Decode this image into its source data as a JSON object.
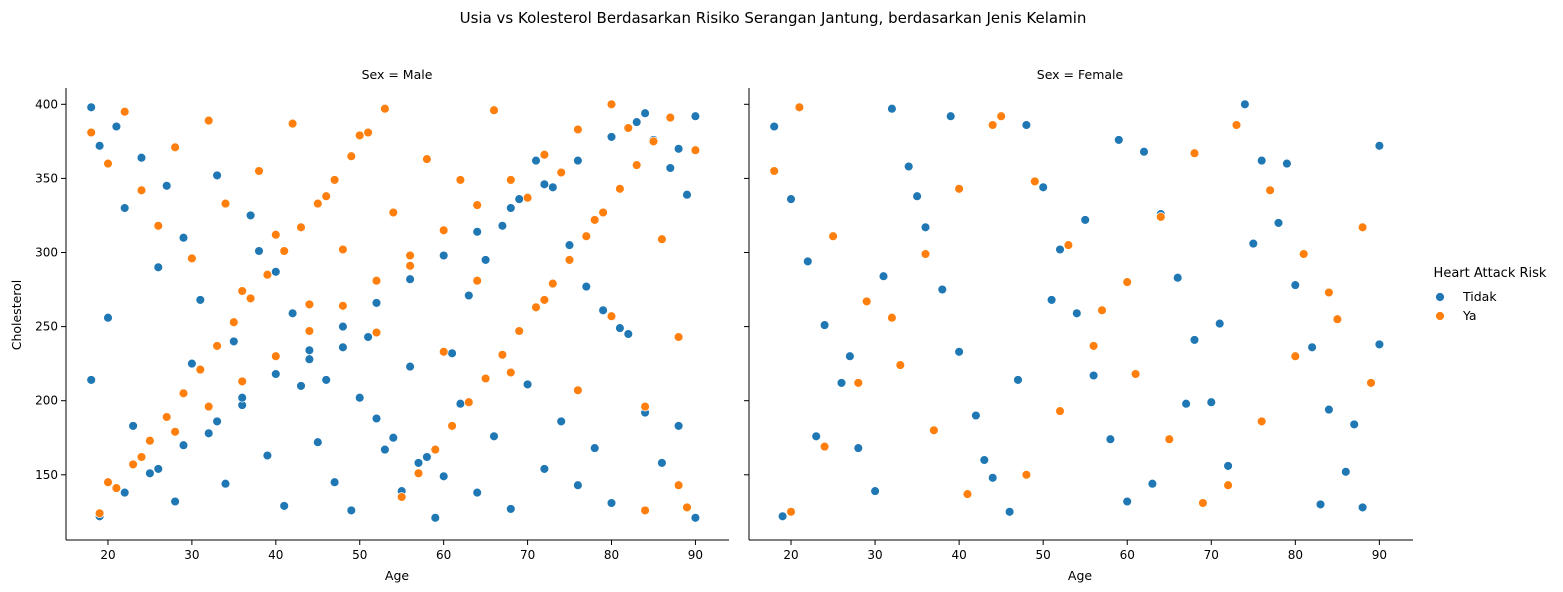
{
  "chart_data": {
    "type": "scatter",
    "title": "Usia vs Kolesterol Berdasarkan Risiko Serangan Jantung, berdasarkan Jenis Kelamin",
    "xlabel": "Age",
    "ylabel": "Cholesterol",
    "xlim": [
      15,
      94
    ],
    "ylim": [
      106,
      411
    ],
    "xticks": [
      20,
      30,
      40,
      50,
      60,
      70,
      80,
      90
    ],
    "yticks": [
      150,
      200,
      250,
      300,
      350,
      400
    ],
    "grid": false,
    "legend": {
      "title": "Heart Attack Risk",
      "placement": "right",
      "entries": [
        {
          "label": "Tidak",
          "color": "#1f77b4"
        },
        {
          "label": "Ya",
          "color": "#ff7f0e"
        }
      ]
    },
    "panels": [
      {
        "title": "Sex = Male",
        "series": [
          {
            "name": "Tidak",
            "color": "#1f77b4",
            "x": [
              18,
              19,
              21,
              22,
              24,
              26,
              27,
              29,
              31,
              33,
              35,
              37,
              38,
              40,
              42,
              44,
              46,
              48,
              50,
              52,
              54,
              56,
              58,
              60,
              62,
              64,
              66,
              68,
              70,
              72,
              74,
              76,
              78,
              80,
              82,
              84,
              86,
              88,
              90,
              18,
              20,
              23,
              25,
              28,
              30,
              32,
              34,
              36,
              39,
              41,
              43,
              45,
              47,
              49,
              51,
              53,
              55,
              57,
              59,
              61,
              63,
              65,
              67,
              69,
              71,
              73,
              75,
              77,
              79,
              81,
              83,
              85,
              87,
              89,
              19,
              22,
              26,
              29,
              33,
              36,
              40,
              44,
              48,
              52,
              56,
              60,
              64,
              68,
              72,
              76,
              80,
              84,
              88,
              90
            ],
            "y": [
              398,
              372,
              385,
              330,
              364,
              290,
              345,
              310,
              268,
              352,
              240,
              325,
              301,
              287,
              259,
              228,
              214,
              236,
              202,
              188,
              175,
              223,
              162,
              149,
              198,
              138,
              176,
              127,
              211,
              154,
              186,
              143,
              168,
              131,
              245,
              192,
              158,
              183,
              121,
              214,
              256,
              183,
              151,
              132,
              225,
              178,
              144,
              197,
              163,
              129,
              210,
              172,
              145,
              126,
              243,
              167,
              139,
              158,
              121,
              232,
              271,
              295,
              318,
              336,
              362,
              344,
              305,
              277,
              261,
              249,
              388,
              376,
              357,
              339,
              122,
              138,
              154,
              170,
              186,
              202,
              218,
              234,
              250,
              266,
              282,
              298,
              314,
              330,
              346,
              362,
              378,
              394,
              370,
              392
            ]
          },
          {
            "name": "Ya",
            "color": "#ff7f0e",
            "x": [
              18,
              20,
              22,
              24,
              26,
              28,
              30,
              32,
              34,
              36,
              38,
              40,
              42,
              44,
              46,
              48,
              50,
              52,
              54,
              56,
              58,
              60,
              62,
              64,
              66,
              68,
              70,
              72,
              74,
              76,
              78,
              80,
              82,
              84,
              86,
              88,
              90,
              19,
              21,
              23,
              25,
              27,
              29,
              31,
              33,
              35,
              37,
              39,
              41,
              43,
              45,
              47,
              49,
              51,
              53,
              55,
              57,
              59,
              61,
              63,
              65,
              67,
              69,
              71,
              73,
              75,
              77,
              79,
              81,
              83,
              85,
              87,
              89,
              20,
              24,
              28,
              32,
              36,
              40,
              44,
              48,
              52,
              56,
              60,
              64,
              68,
              72,
              76,
              80,
              84,
              88
            ],
            "y": [
              381,
              360,
              395,
              342,
              318,
              371,
              296,
              389,
              333,
              274,
              355,
              312,
              387,
              265,
              338,
              302,
              379,
              246,
              327,
              291,
              363,
              233,
              349,
              281,
              396,
              219,
              337,
              268,
              354,
              207,
              322,
              257,
              384,
              196,
              309,
              243,
              369,
              124,
              141,
              157,
              173,
              189,
              205,
              221,
              237,
              253,
              269,
              285,
              301,
              317,
              333,
              349,
              365,
              381,
              397,
              135,
              151,
              167,
              183,
              199,
              215,
              231,
              247,
              263,
              279,
              295,
              311,
              327,
              343,
              359,
              375,
              391,
              128,
              145,
              162,
              179,
              196,
              213,
              230,
              247,
              264,
              281,
              298,
              315,
              332,
              349,
              366,
              383,
              400,
              126,
              143
            ]
          }
        ]
      },
      {
        "title": "Sex = Female",
        "series": [
          {
            "name": "Tidak",
            "color": "#1f77b4",
            "x": [
              18,
              20,
              22,
              24,
              26,
              28,
              30,
              32,
              34,
              36,
              38,
              40,
              42,
              44,
              46,
              48,
              50,
              52,
              54,
              56,
              58,
              60,
              62,
              64,
              66,
              68,
              70,
              72,
              74,
              76,
              78,
              80,
              82,
              84,
              86,
              88,
              90,
              19,
              23,
              27,
              31,
              35,
              39,
              43,
              47,
              51,
              55,
              59,
              63,
              67,
              71,
              75,
              79,
              83,
              87,
              90
            ],
            "y": [
              385,
              336,
              294,
              251,
              212,
              168,
              139,
              397,
              358,
              317,
              275,
              233,
              190,
              148,
              125,
              386,
              344,
              302,
              259,
              217,
              174,
              132,
              368,
              326,
              283,
              241,
              199,
              156,
              400,
              362,
              320,
              278,
              236,
              194,
              152,
              128,
              372,
              122,
              176,
              230,
              284,
              338,
              392,
              160,
              214,
              268,
              322,
              376,
              144,
              198,
              252,
              306,
              360,
              130,
              184,
              238
            ]
          },
          {
            "name": "Ya",
            "color": "#ff7f0e",
            "x": [
              18,
              21,
              25,
              29,
              33,
              37,
              41,
              45,
              49,
              53,
              57,
              61,
              65,
              69,
              73,
              77,
              81,
              85,
              89,
              20,
              24,
              28,
              32,
              36,
              40,
              44,
              48,
              52,
              56,
              60,
              64,
              68,
              72,
              76,
              80,
              84,
              88
            ],
            "y": [
              355,
              398,
              311,
              267,
              224,
              180,
              137,
              392,
              348,
              305,
              261,
              218,
              174,
              131,
              386,
              342,
              299,
              255,
              212,
              125,
              169,
              212,
              256,
              299,
              343,
              386,
              150,
              193,
              237,
              280,
              324,
              367,
              143,
              186,
              230,
              273,
              317
            ]
          }
        ]
      }
    ]
  }
}
